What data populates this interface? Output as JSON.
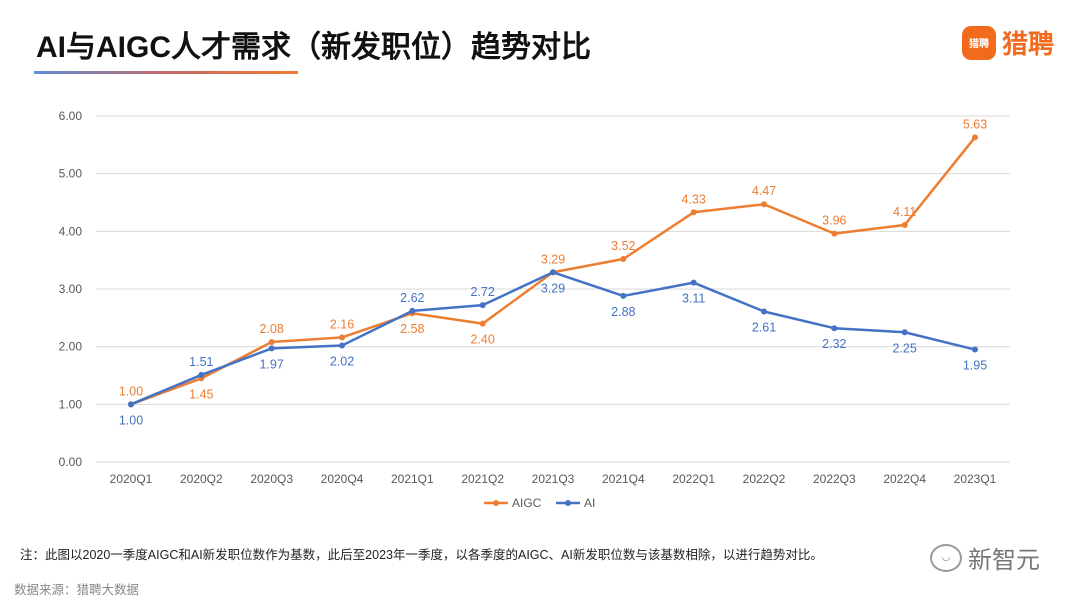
{
  "header": {
    "title": "AI与AIGC人才需求（新发职位）趋势对比",
    "brand": "猎聘",
    "brand_icon_text": "猎聘"
  },
  "chart_data": {
    "type": "line",
    "categories": [
      "2020Q1",
      "2020Q2",
      "2020Q3",
      "2020Q4",
      "2021Q1",
      "2021Q2",
      "2021Q3",
      "2021Q4",
      "2022Q1",
      "2022Q2",
      "2022Q3",
      "2022Q4",
      "2023Q1"
    ],
    "series": [
      {
        "name": "AIGC",
        "color": "#ED7D31",
        "values": [
          1.0,
          1.45,
          2.08,
          2.16,
          2.58,
          2.4,
          3.29,
          3.52,
          4.33,
          4.47,
          3.96,
          4.11,
          5.63
        ]
      },
      {
        "name": "AI",
        "color": "#4472C4",
        "values": [
          1.0,
          1.51,
          1.97,
          2.02,
          2.62,
          2.72,
          3.29,
          2.88,
          3.11,
          2.61,
          2.32,
          2.25,
          1.95
        ]
      }
    ],
    "ylim": [
      0,
      6
    ],
    "yticks": [
      "0.00",
      "1.00",
      "2.00",
      "3.00",
      "4.00",
      "5.00",
      "6.00"
    ],
    "grid": true,
    "legend": "bottom"
  },
  "footer": {
    "note": "注：此图以2020一季度AIGC和AI新发职位数作为基数，此后至2023年一季度，以各季度的AIGC、AI新发职位数与该基数相除，以进行趋势对比。",
    "source": "数据来源：猎聘大数据",
    "watermark": "新智元"
  }
}
